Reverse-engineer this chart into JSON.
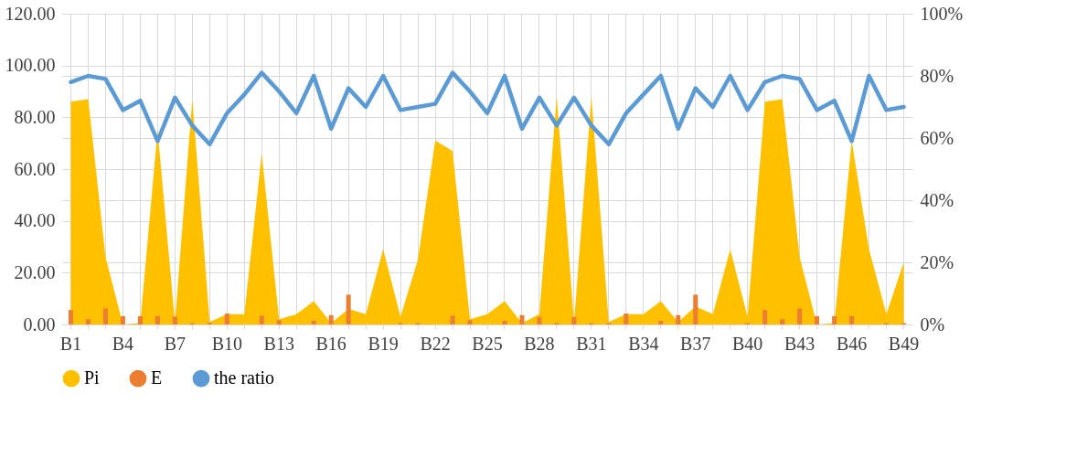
{
  "chart_data": {
    "type": "area",
    "categories": [
      "B1",
      null,
      null,
      "B4",
      null,
      null,
      "B7",
      null,
      null,
      "B10",
      null,
      null,
      "B13",
      null,
      null,
      "B16",
      null,
      null,
      "B19",
      null,
      null,
      "B22",
      null,
      null,
      "B25",
      null,
      null,
      "B28",
      null,
      null,
      "B31",
      null,
      null,
      "B34",
      null,
      null,
      "B37",
      null,
      null,
      "B40",
      null,
      null,
      "B43",
      null,
      null,
      "B46",
      null,
      null,
      "B49"
    ],
    "series": [
      {
        "name": "Pi",
        "color": "#ffc000",
        "values": [
          86,
          87,
          26,
          0,
          0.5,
          75,
          1,
          87,
          1,
          4,
          4,
          66,
          2,
          4,
          9,
          0.5,
          6,
          4,
          29,
          3,
          25,
          71,
          67,
          2,
          4,
          9,
          0.5,
          4,
          88,
          1,
          88,
          1,
          4,
          4,
          9,
          1,
          7,
          4,
          29,
          3,
          86,
          87,
          26,
          0,
          0.5,
          71,
          29,
          4,
          24
        ]
      },
      {
        "name": "E",
        "type": "bar",
        "color": "#ed7d31",
        "values": [
          5.6,
          2,
          6.2,
          3.2,
          3.2,
          3.2,
          3,
          0.5,
          0.6,
          4.2,
          null,
          3.4,
          1.7,
          null,
          1.4,
          3.6,
          11.5,
          null,
          null,
          0.5,
          0.5,
          null,
          3.4,
          1.7,
          null,
          1.4,
          3.6,
          2.9,
          0.5,
          2.9,
          0.5,
          0.5,
          4.2,
          null,
          1.4,
          3.6,
          11.5,
          null,
          null,
          0.5,
          5.6,
          2,
          6.2,
          3.2,
          3.2,
          3.2,
          null,
          0.5,
          0.5
        ]
      },
      {
        "name": "the ratio",
        "type": "line",
        "axis": "y2",
        "color": "#5b9bd5",
        "values": [
          78,
          80,
          79,
          69,
          72,
          59,
          73,
          64,
          58,
          68,
          74,
          81,
          75,
          68,
          80,
          63,
          76,
          70,
          80,
          69,
          70,
          71,
          81,
          75,
          68,
          80,
          63,
          73,
          64,
          73,
          64,
          58,
          68,
          74,
          80,
          63,
          76,
          70,
          80,
          69,
          78,
          80,
          79,
          69,
          72,
          59,
          80,
          69,
          70
        ]
      }
    ],
    "ylim": [
      0,
      120
    ],
    "yticks": [
      {
        "value": 0,
        "label": "0.00"
      },
      {
        "value": 20,
        "label": "20.00"
      },
      {
        "value": 40,
        "label": "40.00"
      },
      {
        "value": 60,
        "label": "60.00"
      },
      {
        "value": 80,
        "label": "80.00"
      },
      {
        "value": 100,
        "label": "100.00"
      },
      {
        "value": 120,
        "label": "120.00"
      }
    ],
    "y2lim": [
      0,
      100
    ],
    "y2ticks": [
      {
        "value": 0,
        "label": "0%"
      },
      {
        "value": 20,
        "label": "20%"
      },
      {
        "value": 40,
        "label": "40%"
      },
      {
        "value": 60,
        "label": "60%"
      },
      {
        "value": 80,
        "label": "80%"
      },
      {
        "value": 100,
        "label": "100%"
      }
    ],
    "grid": true,
    "legend": "bottom"
  }
}
